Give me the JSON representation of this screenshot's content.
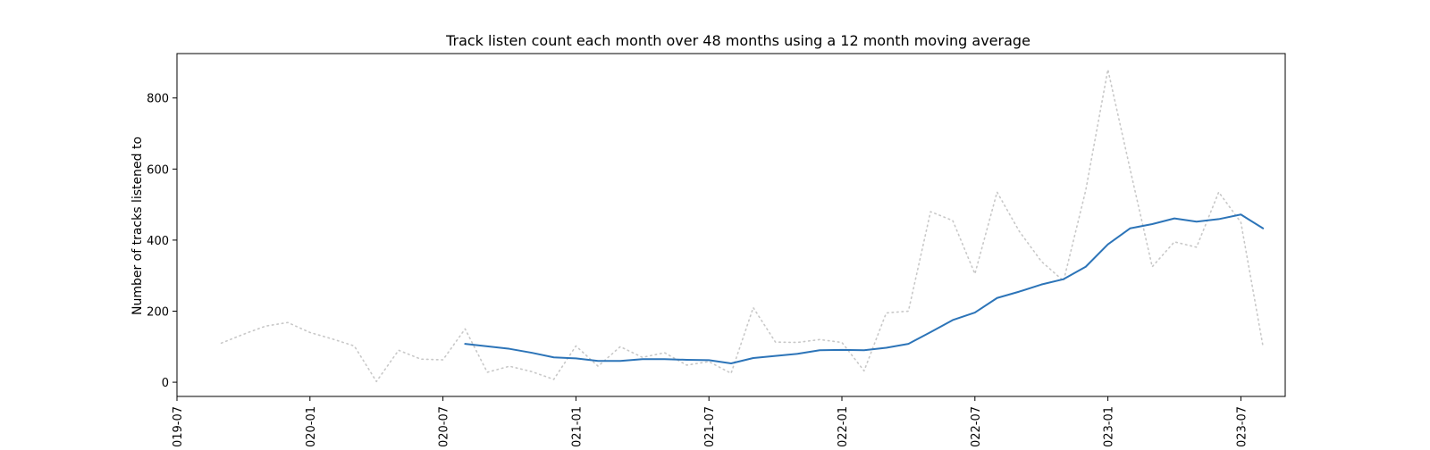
{
  "chart_data": {
    "type": "line",
    "title": "Track listen count each month over 48 months using a 12 month moving average",
    "xlabel": "",
    "ylabel": "Number of tracks listened to",
    "xlim": [
      "2019-07",
      "2023-09"
    ],
    "ylim": [
      -40,
      925
    ],
    "x_tick_labels": [
      "019-07",
      "020-01",
      "020-07",
      "021-01",
      "021-07",
      "022-01",
      "022-07",
      "023-01",
      "023-07"
    ],
    "x_ticks": [
      "2019-07",
      "2020-01",
      "2020-07",
      "2021-01",
      "2021-07",
      "2022-01",
      "2022-07",
      "2023-01",
      "2023-07"
    ],
    "y_ticks": [
      0,
      200,
      400,
      600,
      800
    ],
    "grid": false,
    "series": [
      {
        "style": "dotted",
        "color": "#c8c8c8",
        "points": [
          [
            "2019-09",
            110
          ],
          [
            "2019-10",
            135
          ],
          [
            "2019-11",
            158
          ],
          [
            "2019-12",
            168
          ],
          [
            "2020-01",
            140
          ],
          [
            "2020-02",
            122
          ],
          [
            "2020-03",
            102
          ],
          [
            "2020-04",
            2
          ],
          [
            "2020-05",
            90
          ],
          [
            "2020-06",
            65
          ],
          [
            "2020-07",
            63
          ],
          [
            "2020-08",
            150
          ],
          [
            "2020-09",
            28
          ],
          [
            "2020-10",
            45
          ],
          [
            "2020-11",
            30
          ],
          [
            "2020-12",
            8
          ],
          [
            "2021-01",
            102
          ],
          [
            "2021-02",
            45
          ],
          [
            "2021-03",
            100
          ],
          [
            "2021-04",
            70
          ],
          [
            "2021-05",
            83
          ],
          [
            "2021-06",
            48
          ],
          [
            "2021-07",
            58
          ],
          [
            "2021-08",
            25
          ],
          [
            "2021-09",
            210
          ],
          [
            "2021-10",
            113
          ],
          [
            "2021-11",
            112
          ],
          [
            "2021-12",
            120
          ],
          [
            "2022-01",
            112
          ],
          [
            "2022-02",
            32
          ],
          [
            "2022-03",
            195
          ],
          [
            "2022-04",
            200
          ],
          [
            "2022-05",
            480
          ],
          [
            "2022-06",
            455
          ],
          [
            "2022-07",
            305
          ],
          [
            "2022-08",
            535
          ],
          [
            "2022-09",
            425
          ],
          [
            "2022-10",
            340
          ],
          [
            "2022-11",
            285
          ],
          [
            "2022-12",
            540
          ],
          [
            "2023-01",
            880
          ],
          [
            "2023-02",
            600
          ],
          [
            "2023-03",
            325
          ],
          [
            "2023-04",
            395
          ],
          [
            "2023-05",
            380
          ],
          [
            "2023-06",
            535
          ],
          [
            "2023-07",
            450
          ],
          [
            "2023-08",
            100
          ]
        ]
      },
      {
        "style": "solid",
        "color": "#2c74b8",
        "points": [
          [
            "2020-08",
            108
          ],
          [
            "2020-09",
            101
          ],
          [
            "2020-10",
            94
          ],
          [
            "2020-11",
            83
          ],
          [
            "2020-12",
            70
          ],
          [
            "2021-01",
            67
          ],
          [
            "2021-02",
            60
          ],
          [
            "2021-03",
            60
          ],
          [
            "2021-04",
            65
          ],
          [
            "2021-05",
            65
          ],
          [
            "2021-06",
            63
          ],
          [
            "2021-07",
            62
          ],
          [
            "2021-08",
            53
          ],
          [
            "2021-09",
            68
          ],
          [
            "2021-10",
            74
          ],
          [
            "2021-11",
            80
          ],
          [
            "2021-12",
            90
          ],
          [
            "2022-01",
            91
          ],
          [
            "2022-02",
            90
          ],
          [
            "2022-03",
            97
          ],
          [
            "2022-04",
            108
          ],
          [
            "2022-05",
            141
          ],
          [
            "2022-06",
            175
          ],
          [
            "2022-07",
            196
          ],
          [
            "2022-08",
            237
          ],
          [
            "2022-09",
            255
          ],
          [
            "2022-10",
            275
          ],
          [
            "2022-11",
            290
          ],
          [
            "2022-12",
            325
          ],
          [
            "2023-01",
            388
          ],
          [
            "2023-02",
            433
          ],
          [
            "2023-03",
            445
          ],
          [
            "2023-04",
            461
          ],
          [
            "2023-05",
            452
          ],
          [
            "2023-06",
            459
          ],
          [
            "2023-07",
            472
          ],
          [
            "2023-08",
            433
          ]
        ]
      }
    ]
  }
}
